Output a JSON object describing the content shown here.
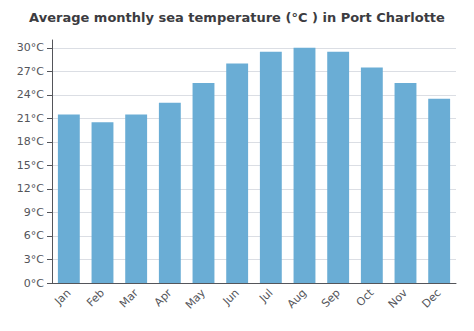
{
  "chart_data": {
    "type": "bar",
    "title": "Average monthly sea temperature (°C ) in Port Charlotte",
    "categories": [
      "Jan",
      "Feb",
      "Mar",
      "Apr",
      "May",
      "Jun",
      "Jul",
      "Aug",
      "Sep",
      "Oct",
      "Nov",
      "Dec"
    ],
    "values": [
      21.5,
      20.5,
      21.5,
      23.0,
      25.5,
      28.0,
      29.5,
      30.0,
      29.5,
      27.5,
      25.5,
      23.5
    ],
    "color": "#6aadd5",
    "ylim": [
      0,
      31
    ],
    "yticks": [
      {
        "value": 0,
        "label": "0°C"
      },
      {
        "value": 3,
        "label": "3°C"
      },
      {
        "value": 6,
        "label": "6°C"
      },
      {
        "value": 9,
        "label": "9°C"
      },
      {
        "value": 12,
        "label": "12°C"
      },
      {
        "value": 15,
        "label": "15°C"
      },
      {
        "value": 18,
        "label": "18°C"
      },
      {
        "value": 21,
        "label": "21°C"
      },
      {
        "value": 24,
        "label": "24°C"
      },
      {
        "value": 27,
        "label": "27°C"
      },
      {
        "value": 30,
        "label": "30°C"
      }
    ],
    "grid": true
  }
}
